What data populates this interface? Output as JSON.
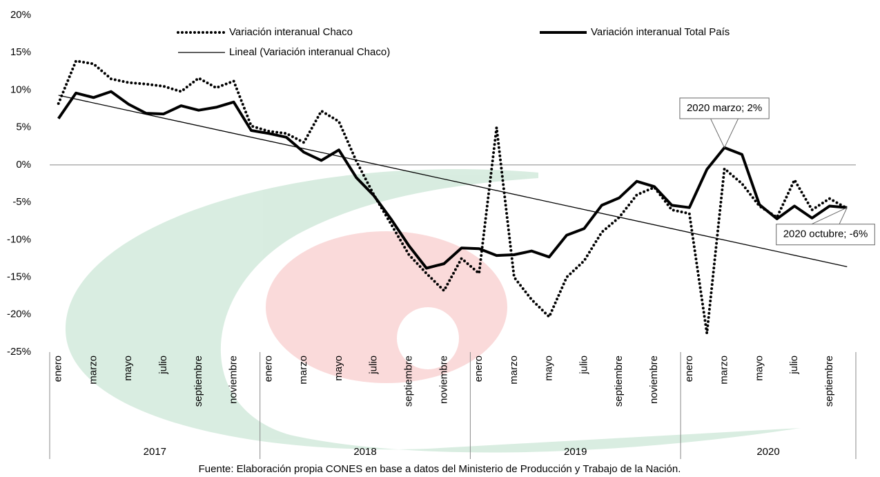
{
  "chart_data": {
    "type": "line",
    "source": "Fuente: Elaboración propia CONES en base a datos del Ministerio de Producción y Trabajo de la Nación.",
    "categories": [
      "enero",
      null,
      "marzo",
      null,
      "mayo",
      null,
      "julio",
      null,
      "septiembre",
      null,
      "noviembre",
      null,
      "enero",
      null,
      "marzo",
      null,
      "mayo",
      null,
      "julio",
      null,
      "septiembre",
      null,
      "noviembre",
      null,
      "enero",
      null,
      "marzo",
      null,
      "mayo",
      null,
      "julio",
      null,
      "septiembre",
      null,
      "noviembre",
      null,
      "enero",
      null,
      "marzo",
      null,
      "mayo",
      null,
      "julio",
      null,
      "septiembre",
      null
    ],
    "groups": [
      "2017",
      "2018",
      "2019",
      "2020"
    ],
    "series": [
      {
        "name": "Variación interanual Chaco",
        "color": "#000000",
        "style": "dotted",
        "values": [
          8.2,
          13.9,
          13.5,
          11.5,
          11.0,
          10.8,
          10.5,
          9.8,
          11.6,
          10.3,
          11.2,
          5.2,
          4.5,
          4.2,
          3.0,
          7.2,
          5.8,
          0.5,
          -4.0,
          -8.0,
          -12.0,
          -14.5,
          -16.8,
          -12.5,
          -14.5,
          5.0,
          -15.0,
          -18.0,
          -20.3,
          -15.0,
          -12.8,
          -9.0,
          -7.0,
          -4.0,
          -3.0,
          -6.0,
          -6.5,
          -22.5,
          -0.5,
          -2.5,
          -5.5,
          -7.0,
          -2.0,
          -6.0,
          -4.5,
          -5.8
        ]
      },
      {
        "name": "Variación interanual Total País",
        "color": "#000000",
        "style": "solid",
        "values": [
          6.2,
          9.6,
          9.0,
          9.8,
          8.1,
          6.9,
          6.8,
          7.9,
          7.3,
          7.7,
          8.4,
          4.6,
          4.2,
          3.7,
          1.7,
          0.6,
          2.0,
          -1.7,
          -4.1,
          -7.3,
          -10.8,
          -13.8,
          -13.2,
          -11.1,
          -11.2,
          -12.1,
          -12.0,
          -11.5,
          -12.3,
          -9.4,
          -8.5,
          -5.4,
          -4.4,
          -2.2,
          -2.9,
          -5.4,
          -5.7,
          -0.6,
          2.3,
          1.4,
          -5.3,
          -7.2,
          -5.5,
          -7.1,
          -5.5,
          -5.7
        ],
        "value_labels": [
          null,
          null,
          null,
          null,
          null,
          null,
          null,
          null,
          null,
          null,
          null,
          null,
          null,
          null,
          null,
          null,
          null,
          null,
          null,
          null,
          null,
          null,
          null,
          null,
          null,
          null,
          null,
          null,
          null,
          null,
          null,
          null,
          null,
          null,
          null,
          null,
          null,
          null,
          "2020 marzo; 2%",
          null,
          null,
          null,
          null,
          null,
          null,
          "2020 octubre; -6%"
        ]
      }
    ],
    "trendline": {
      "name": "Lineal (Variación interanual Chaco)",
      "color": "#000000",
      "values": [
        9.3,
        -13.6
      ]
    },
    "ylim": [
      -25,
      20
    ],
    "yticks": [
      {
        "value": -25,
        "label": "-25%"
      },
      {
        "value": -20,
        "label": "-20%"
      },
      {
        "value": -15,
        "label": "-15%"
      },
      {
        "value": -10,
        "label": "-10%"
      },
      {
        "value": -5,
        "label": "-5%"
      },
      {
        "value": 0,
        "label": "0%"
      },
      {
        "value": 5,
        "label": "5%"
      },
      {
        "value": 10,
        "label": "10%"
      },
      {
        "value": 15,
        "label": "15%"
      },
      {
        "value": 20,
        "label": "20%"
      }
    ],
    "grid": false,
    "legend": "top"
  }
}
